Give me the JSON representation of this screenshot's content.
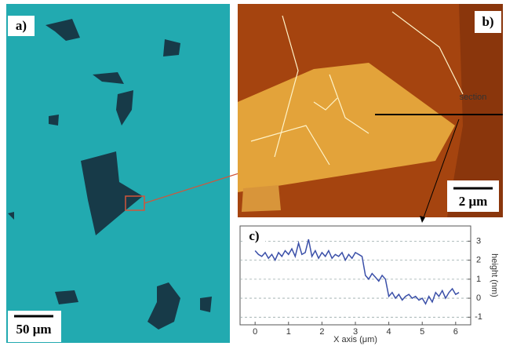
{
  "panels": {
    "a": {
      "label": "a)",
      "scale_bar": "50 μm"
    },
    "b": {
      "label": "b)",
      "scale_bar": "2 μm",
      "annotation": "section"
    },
    "c": {
      "label": "c)"
    }
  },
  "chart_data": {
    "type": "line",
    "x_label": "X axis (μm)",
    "y_label": "height (nm)",
    "x": [
      0.0,
      0.1,
      0.2,
      0.3,
      0.4,
      0.5,
      0.6,
      0.7,
      0.8,
      0.9,
      1.0,
      1.1,
      1.2,
      1.3,
      1.4,
      1.5,
      1.6,
      1.7,
      1.8,
      1.9,
      2.0,
      2.1,
      2.2,
      2.3,
      2.4,
      2.5,
      2.6,
      2.7,
      2.8,
      2.9,
      3.0,
      3.1,
      3.2,
      3.3,
      3.4,
      3.5,
      3.6,
      3.7,
      3.8,
      3.9,
      4.0,
      4.1,
      4.2,
      4.3,
      4.4,
      4.5,
      4.6,
      4.7,
      4.8,
      4.9,
      5.0,
      5.1,
      5.2,
      5.3,
      5.4,
      5.5,
      5.6,
      5.7,
      5.8,
      5.9,
      6.0,
      6.1
    ],
    "values": [
      2.5,
      2.3,
      2.2,
      2.4,
      2.1,
      2.3,
      2.0,
      2.4,
      2.2,
      2.5,
      2.3,
      2.6,
      2.2,
      2.9,
      2.3,
      2.4,
      3.1,
      2.2,
      2.5,
      2.1,
      2.4,
      2.2,
      2.5,
      2.1,
      2.3,
      2.2,
      2.4,
      2.0,
      2.3,
      2.1,
      2.4,
      2.3,
      2.2,
      1.2,
      1.0,
      1.3,
      1.1,
      0.9,
      1.2,
      1.0,
      0.1,
      0.3,
      0.0,
      0.2,
      -0.1,
      0.1,
      0.2,
      0.0,
      0.1,
      -0.1,
      0.0,
      -0.3,
      0.1,
      -0.2,
      0.3,
      0.1,
      0.4,
      0.0,
      0.3,
      0.5,
      0.2,
      0.3
    ],
    "color": "#3a4fa8",
    "xlim": [
      -0.45,
      6.45
    ],
    "ylim": [
      -1.4,
      3.8
    ],
    "xticks": [
      0,
      1,
      2,
      3,
      4,
      5,
      6
    ],
    "yticks": [
      -1,
      0,
      1,
      2,
      3
    ],
    "y_axis_side": "right",
    "grid": true
  }
}
